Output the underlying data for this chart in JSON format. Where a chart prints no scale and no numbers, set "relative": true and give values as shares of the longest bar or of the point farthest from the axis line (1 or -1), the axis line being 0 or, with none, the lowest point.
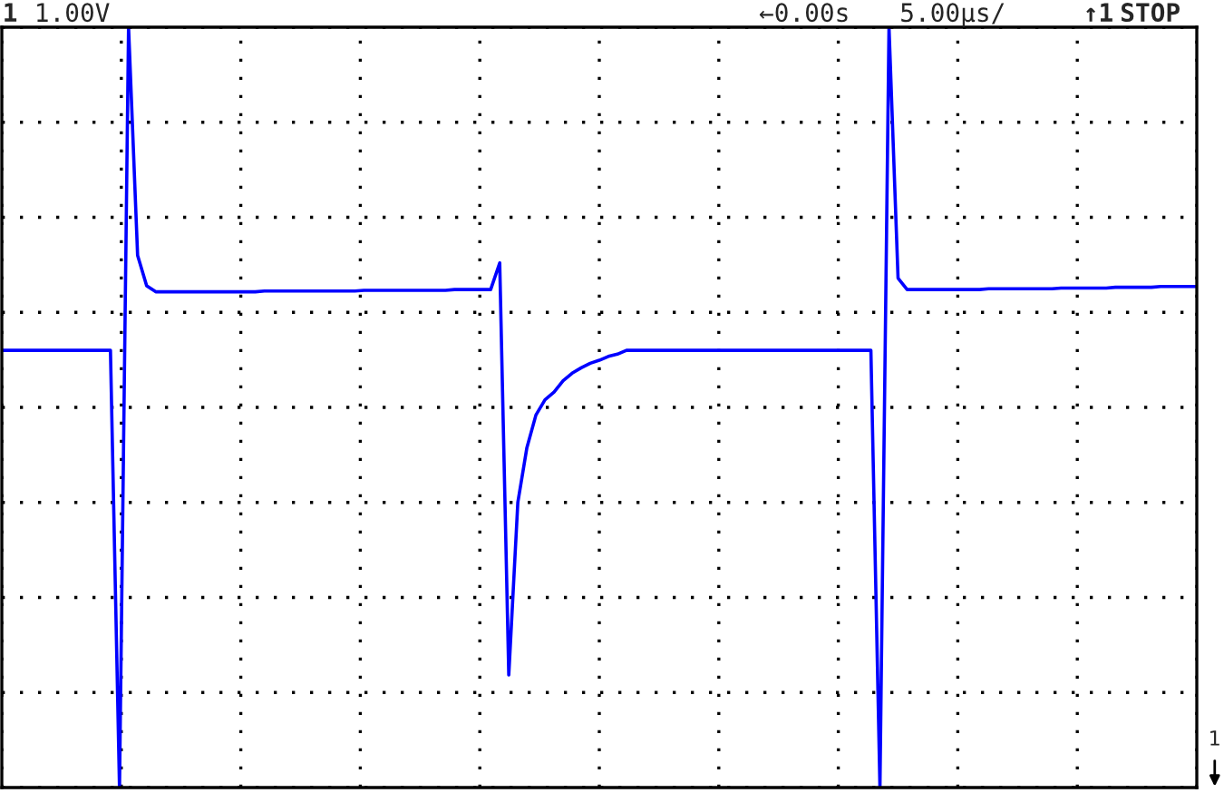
{
  "chart_data": {
    "type": "line",
    "relative": true,
    "grid": true,
    "legend": false,
    "annotations": [
      "1",
      "1.00V",
      "←0.00s",
      "5.00µs/",
      "↑1",
      "STOP",
      "1"
    ],
    "categories": [
      null,
      null,
      null,
      null,
      null,
      null,
      null,
      null,
      null,
      null,
      null,
      null,
      null,
      null,
      null,
      null,
      null,
      null,
      null,
      null,
      null,
      null,
      null,
      null,
      null,
      null,
      null,
      null,
      null,
      null,
      null,
      null,
      null,
      null,
      null,
      null,
      null,
      null,
      null,
      null,
      null,
      null,
      null,
      null,
      null,
      null,
      null,
      null,
      null,
      null,
      null,
      null,
      null,
      null,
      null,
      null,
      null,
      null,
      null,
      null,
      null,
      null,
      null,
      null,
      null,
      null,
      null,
      null,
      null,
      null,
      null,
      null,
      null,
      null,
      null,
      null,
      null,
      null,
      null,
      null,
      null,
      null,
      null,
      null,
      null,
      null,
      null,
      null,
      null,
      null,
      null,
      null,
      null,
      null,
      null,
      null,
      null,
      null,
      null,
      null,
      null,
      null,
      null,
      null,
      null,
      null,
      null,
      null,
      null,
      null,
      null,
      null,
      null,
      null,
      null,
      null,
      null,
      null,
      null,
      null,
      null,
      null,
      null,
      null,
      null,
      null,
      null,
      null,
      null,
      null,
      null,
      null,
      null
    ],
    "series": [
      {
        "color": "#0000ff",
        "values": [
          0.575,
          0.575,
          0.575,
          0.575,
          0.575,
          0.575,
          0.575,
          0.575,
          0.575,
          0.575,
          0.575,
          0.575,
          0.575,
          0.0,
          1.0,
          0.7,
          0.66,
          0.652,
          0.652,
          0.652,
          0.652,
          0.652,
          0.652,
          0.652,
          0.652,
          0.652,
          0.652,
          0.652,
          0.652,
          0.653,
          0.653,
          0.653,
          0.653,
          0.653,
          0.653,
          0.653,
          0.653,
          0.653,
          0.653,
          0.653,
          0.654,
          0.654,
          0.654,
          0.654,
          0.654,
          0.654,
          0.654,
          0.654,
          0.654,
          0.654,
          0.655,
          0.655,
          0.655,
          0.655,
          0.655,
          0.69,
          0.148,
          0.375,
          0.447,
          0.49,
          0.51,
          0.52,
          0.535,
          0.545,
          0.552,
          0.558,
          0.562,
          0.567,
          0.57,
          0.575,
          0.575,
          0.575,
          0.575,
          0.575,
          0.575,
          0.575,
          0.575,
          0.575,
          0.575,
          0.575,
          0.575,
          0.575,
          0.575,
          0.575,
          0.575,
          0.575,
          0.575,
          0.575,
          0.575,
          0.575,
          0.575,
          0.575,
          0.575,
          0.575,
          0.575,
          0.575,
          0.575,
          0.0,
          1.0,
          0.67,
          0.655,
          0.655,
          0.655,
          0.655,
          0.655,
          0.655,
          0.655,
          0.655,
          0.655,
          0.656,
          0.656,
          0.656,
          0.656,
          0.656,
          0.656,
          0.656,
          0.656,
          0.657,
          0.657,
          0.657,
          0.657,
          0.657,
          0.657,
          0.658,
          0.658,
          0.658,
          0.658,
          0.658,
          0.659,
          0.659,
          0.659,
          0.659,
          0.659
        ]
      }
    ]
  }
}
